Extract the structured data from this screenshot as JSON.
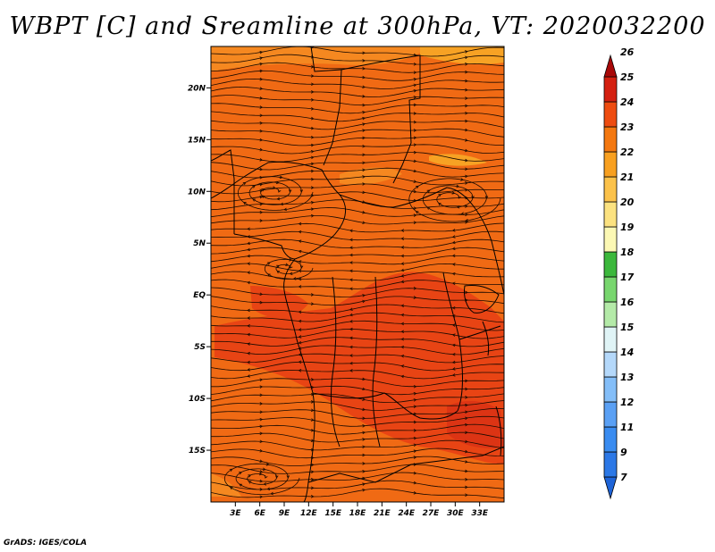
{
  "title": "WBPT [C] and Sreamline at 300hPa, VT: 2020032200",
  "credit": "GrADS: IGES/COLA",
  "map": {
    "lon_range": [
      0,
      36
    ],
    "lat_range": [
      -20,
      24
    ],
    "lat_ticks": [
      {
        "lat": 20,
        "label": "20N"
      },
      {
        "lat": 15,
        "label": "15N"
      },
      {
        "lat": 10,
        "label": "10N"
      },
      {
        "lat": 5,
        "label": "5N"
      },
      {
        "lat": 0,
        "label": "EQ"
      },
      {
        "lat": -5,
        "label": "5S"
      },
      {
        "lat": -10,
        "label": "10S"
      },
      {
        "lat": -15,
        "label": "15S"
      }
    ],
    "lon_ticks": [
      {
        "lon": 3,
        "label": "3E"
      },
      {
        "lon": 6,
        "label": "6E"
      },
      {
        "lon": 9,
        "label": "9E"
      },
      {
        "lon": 12,
        "label": "12E"
      },
      {
        "lon": 15,
        "label": "15E"
      },
      {
        "lon": 18,
        "label": "18E"
      },
      {
        "lon": 21,
        "label": "21E"
      },
      {
        "lon": 24,
        "label": "24E"
      },
      {
        "lon": 27,
        "label": "27E"
      },
      {
        "lon": 30,
        "label": "30E"
      },
      {
        "lon": 33,
        "label": "33E"
      }
    ]
  },
  "colorbar": {
    "levels": [
      {
        "label": "7",
        "color": "#1e64d8"
      },
      {
        "label": "9",
        "color": "#2c78e6"
      },
      {
        "label": "11",
        "color": "#3a8cf0"
      },
      {
        "label": "12",
        "color": "#5aa0f4"
      },
      {
        "label": "13",
        "color": "#84bef8"
      },
      {
        "label": "14",
        "color": "#b4d8fa"
      },
      {
        "label": "15",
        "color": "#e0f4f6"
      },
      {
        "label": "16",
        "color": "#b4eaa8"
      },
      {
        "label": "17",
        "color": "#78d66e"
      },
      {
        "label": "18",
        "color": "#3cb83c"
      },
      {
        "label": "19",
        "color": "#fcf8b4"
      },
      {
        "label": "20",
        "color": "#fce280"
      },
      {
        "label": "21",
        "color": "#fcc24a"
      },
      {
        "label": "22",
        "color": "#f8a020"
      },
      {
        "label": "23",
        "color": "#f47810"
      },
      {
        "label": "24",
        "color": "#ee4c10"
      },
      {
        "label": "25",
        "color": "#d42010"
      },
      {
        "label": "26",
        "color": "#a80808"
      }
    ]
  }
}
